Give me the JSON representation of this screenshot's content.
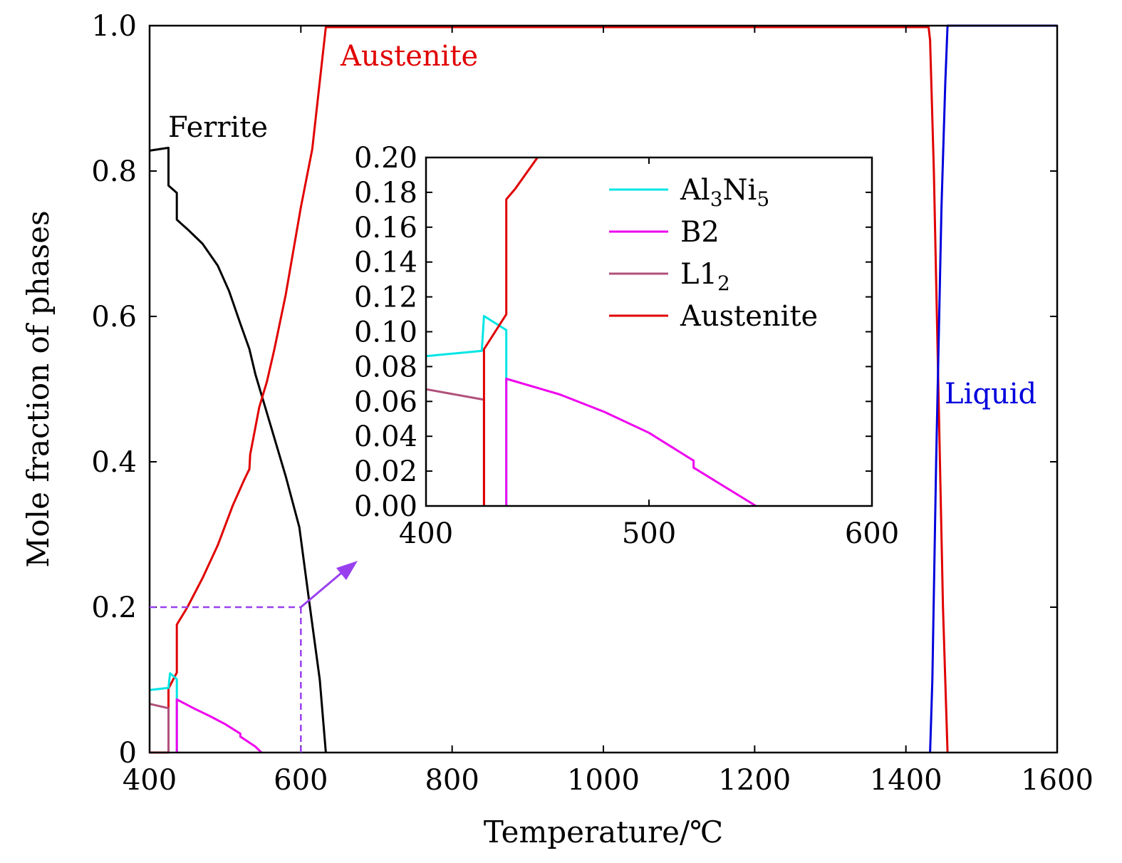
{
  "chart_data": [
    {
      "type": "line",
      "xlabel": "Temperature/℃",
      "ylabel": "Mole fraction of phases",
      "xlim": [
        400,
        1600
      ],
      "ylim": [
        0,
        1
      ],
      "xticks": [
        400,
        600,
        800,
        1000,
        1200,
        1400,
        1600
      ],
      "yticks": [
        0,
        0.2,
        0.4,
        0.6,
        0.8,
        1.0
      ],
      "ytick_labels": [
        "0",
        "0.2",
        "0.4",
        "0.6",
        "0.8",
        "1.0"
      ],
      "grid": false,
      "series": [
        {
          "name": "Ferrite",
          "color": "#000000",
          "points": [
            [
              400,
              0.828
            ],
            [
              425,
              0.832
            ],
            [
              425,
              0.78
            ],
            [
              436,
              0.77
            ],
            [
              436,
              0.733
            ],
            [
              450,
              0.72
            ],
            [
              470,
              0.7
            ],
            [
              490,
              0.67
            ],
            [
              505,
              0.635
            ],
            [
              520,
              0.59
            ],
            [
              532,
              0.555
            ],
            [
              532,
              0.555
            ],
            [
              540,
              0.52
            ],
            [
              560,
              0.45
            ],
            [
              580,
              0.38
            ],
            [
              598,
              0.31
            ],
            [
              612,
              0.2
            ],
            [
              625,
              0.1
            ],
            [
              633,
              0.0
            ]
          ]
        },
        {
          "name": "Austenite",
          "color": "#e00000",
          "points": [
            [
              400,
              0
            ],
            [
              425,
              0
            ],
            [
              425,
              0.088
            ],
            [
              436,
              0.11
            ],
            [
              436,
              0.176
            ],
            [
              450,
              0.2
            ],
            [
              470,
              0.24
            ],
            [
              490,
              0.285
            ],
            [
              510,
              0.34
            ],
            [
              525,
              0.375
            ],
            [
              532,
              0.39
            ],
            [
              533,
              0.41
            ],
            [
              545,
              0.475
            ],
            [
              555,
              0.51
            ],
            [
              565,
              0.555
            ],
            [
              580,
              0.63
            ],
            [
              600,
              0.75
            ],
            [
              615,
              0.83
            ],
            [
              633,
              0.998
            ],
            [
              650,
              0.998
            ],
            [
              1430,
              0.998
            ],
            [
              1432,
              0.98
            ],
            [
              1437,
              0.8
            ],
            [
              1443,
              0.5
            ],
            [
              1449,
              0.2
            ],
            [
              1455,
              0.0
            ]
          ]
        },
        {
          "name": "Al3Ni5",
          "color": "#00e5e5",
          "points": [
            [
              400,
              0.086
            ],
            [
              425,
              0.089
            ],
            [
              427,
              0.109
            ],
            [
              436,
              0.101
            ],
            [
              436,
              0.0
            ]
          ]
        },
        {
          "name": "B2",
          "color": "#ee00ee",
          "points": [
            [
              436,
              0
            ],
            [
              436,
              0.073
            ],
            [
              460,
              0.06
            ],
            [
              480,
              0.05
            ],
            [
              500,
              0.039
            ],
            [
              520,
              0.026
            ],
            [
              520,
              0.022
            ],
            [
              540,
              0.008
            ],
            [
              548,
              0.0
            ]
          ]
        },
        {
          "name": "L12",
          "color": "#b0507a",
          "points": [
            [
              400,
              0.067
            ],
            [
              425,
              0.061
            ],
            [
              425,
              0.0
            ]
          ]
        },
        {
          "name": "Liquid",
          "color": "#0000dd",
          "points": [
            [
              1432,
              0
            ],
            [
              1435,
              0.1
            ],
            [
              1440,
              0.4
            ],
            [
              1447,
              0.75
            ],
            [
              1452,
              0.92
            ],
            [
              1455,
              1.0
            ],
            [
              1600,
              1.0
            ]
          ]
        }
      ],
      "series_labels": [
        "Ferrite",
        "Austenite",
        "Liquid"
      ],
      "annotation": {
        "type": "zoom-box",
        "x": 600,
        "y": 0.2,
        "color": "#9940ee",
        "style": "dashed"
      }
    },
    {
      "type": "line",
      "inset": true,
      "xlim": [
        400,
        600
      ],
      "ylim": [
        0,
        0.2
      ],
      "xticks": [
        400,
        500,
        600
      ],
      "yticks": [
        0,
        0.02,
        0.04,
        0.06,
        0.08,
        0.1,
        0.12,
        0.14,
        0.16,
        0.18,
        0.2
      ],
      "ytick_labels": [
        "0.00",
        "0.02",
        "0.04",
        "0.06",
        "0.08",
        "0.10",
        "0.12",
        "0.14",
        "0.16",
        "0.18",
        "0.20"
      ],
      "grid": false,
      "legend_position": "top-right",
      "legend": [
        {
          "base": "Al",
          "sub1": "3",
          "mid": "Ni",
          "sub2": "5",
          "color": "#00e5e5"
        },
        {
          "base": "B2",
          "sub1": "",
          "mid": "",
          "sub2": "",
          "color": "#ee00ee"
        },
        {
          "base": "L1",
          "sub1": "2",
          "mid": "",
          "sub2": "",
          "color": "#b0507a"
        },
        {
          "base": "Austenite",
          "sub1": "",
          "mid": "",
          "sub2": "",
          "color": "#e00000"
        }
      ],
      "series": [
        {
          "name": "Al3Ni5",
          "color": "#00e5e5",
          "points": [
            [
              400,
              0.086
            ],
            [
              425,
              0.089
            ],
            [
              426,
              0.109
            ],
            [
              436,
              0.101
            ],
            [
              436,
              0.0
            ]
          ]
        },
        {
          "name": "B2",
          "color": "#ee00ee",
          "points": [
            [
              436,
              0
            ],
            [
              436,
              0.073
            ],
            [
              460,
              0.064
            ],
            [
              480,
              0.054
            ],
            [
              500,
              0.042
            ],
            [
              520,
              0.026
            ],
            [
              520,
              0.022
            ],
            [
              548,
              0.0
            ]
          ]
        },
        {
          "name": "L12",
          "color": "#b0507a",
          "points": [
            [
              400,
              0.067
            ],
            [
              426,
              0.061
            ],
            [
              426,
              0.0
            ]
          ]
        },
        {
          "name": "Austenite",
          "color": "#e00000",
          "points": [
            [
              426,
              0.0
            ],
            [
              426,
              0.09
            ],
            [
              436,
              0.11
            ],
            [
              436,
              0.176
            ],
            [
              440,
              0.182
            ],
            [
              450,
              0.2
            ]
          ]
        }
      ]
    }
  ]
}
